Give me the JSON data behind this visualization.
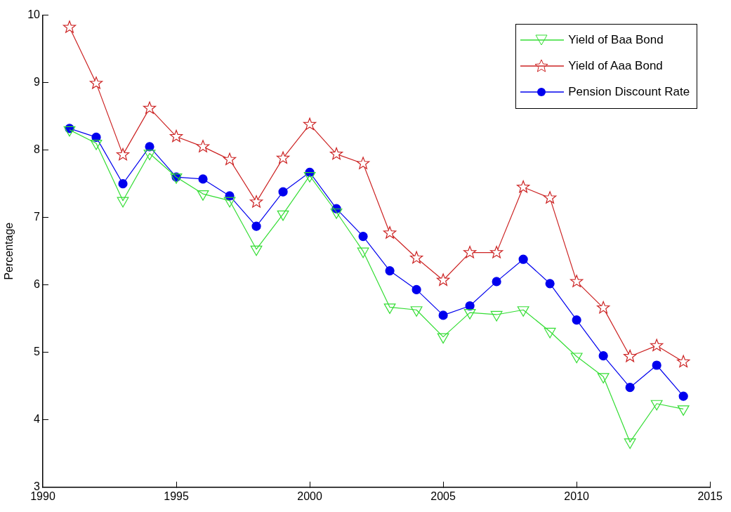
{
  "chart_data": {
    "type": "line",
    "ylabel": "Percentage",
    "x": [
      1991,
      1992,
      1993,
      1994,
      1995,
      1996,
      1997,
      1998,
      1999,
      2000,
      2001,
      2002,
      2003,
      2004,
      2005,
      2006,
      2007,
      2008,
      2009,
      2010,
      2011,
      2012,
      2013,
      2014
    ],
    "xlim": [
      1990,
      2015
    ],
    "xticks": [
      1990,
      1995,
      2000,
      2005,
      2010,
      2015
    ],
    "ylim": [
      3,
      10
    ],
    "yticks": [
      3,
      4,
      5,
      6,
      7,
      8,
      9,
      10
    ],
    "grid": false,
    "legend": "top right",
    "line_style": "solid",
    "series": [
      {
        "name": "Yield of Baa Bond",
        "color": "#33dd33",
        "marker": "triangle-down",
        "values": [
          8.3,
          8.1,
          7.25,
          7.95,
          7.6,
          7.35,
          7.25,
          6.53,
          7.05,
          7.62,
          7.08,
          6.5,
          5.67,
          5.63,
          5.23,
          5.59,
          5.56,
          5.63,
          5.31,
          4.94,
          4.64,
          3.67,
          4.24,
          4.16
        ]
      },
      {
        "name": "Yield of Aaa Bond",
        "color": "#cc2222",
        "marker": "star",
        "values": [
          9.82,
          8.99,
          7.93,
          8.62,
          8.2,
          8.05,
          7.86,
          7.23,
          7.88,
          8.38,
          7.94,
          7.8,
          6.77,
          6.4,
          6.07,
          6.48,
          6.48,
          7.45,
          7.29,
          6.05,
          5.66,
          4.94,
          5.1,
          4.86
        ]
      },
      {
        "name": "Pension Discount Rate",
        "color": "#0000ee",
        "marker": "circle",
        "values": [
          8.32,
          8.19,
          7.5,
          8.05,
          7.6,
          7.57,
          7.32,
          6.87,
          7.38,
          7.67,
          7.13,
          6.72,
          6.21,
          5.93,
          5.55,
          5.69,
          6.05,
          6.38,
          6.02,
          5.48,
          4.95,
          4.48,
          4.81,
          4.35
        ]
      }
    ]
  }
}
